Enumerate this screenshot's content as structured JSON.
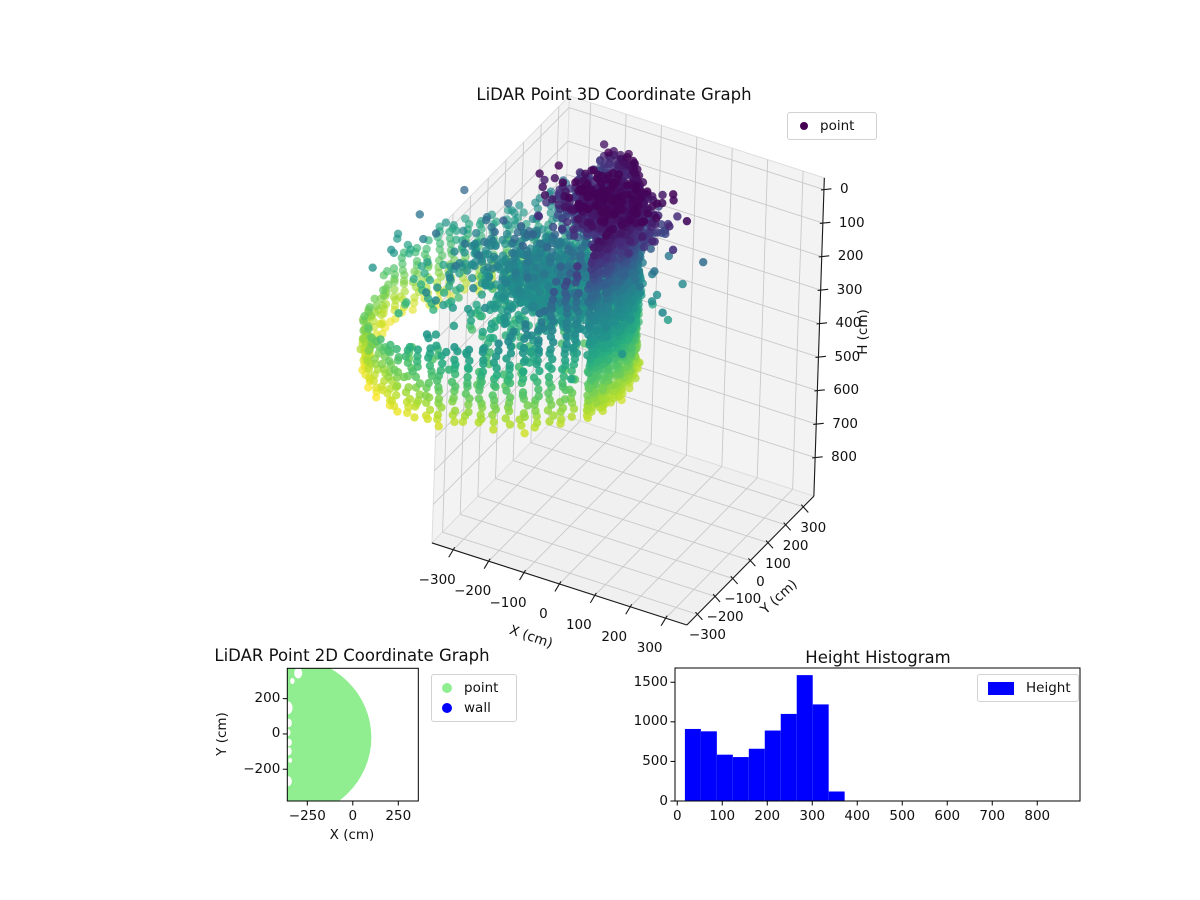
{
  "figure": {
    "background": "#ffffff"
  },
  "chart_data": [
    {
      "id": "plot3d",
      "type": "scatter3d",
      "title": "LiDAR Point 3D Coordinate Graph",
      "xlabel": "X (cm)",
      "ylabel": "Y (cm)",
      "zlabel": "H (cm)",
      "legend": {
        "position": "upper right",
        "entries": [
          {
            "label": "point",
            "color": "#440154"
          }
        ]
      },
      "view": {
        "elev_deg": 30,
        "azim_deg": -60,
        "zaxis_inverted": true
      },
      "xlim": [
        -360,
        360
      ],
      "ylim": [
        -360,
        360
      ],
      "zlim": [
        -35,
        915
      ],
      "xticks": {
        "values": [
          -300,
          -200,
          -100,
          0,
          100,
          200,
          300
        ],
        "labels": [
          "−300",
          "−200",
          "−100",
          "0",
          "100",
          "200",
          "300"
        ]
      },
      "yticks": {
        "values": [
          -300,
          -200,
          -100,
          0,
          100,
          200,
          300
        ],
        "labels": [
          "−300",
          "−200",
          "−100",
          "0",
          "100",
          "200",
          "300"
        ]
      },
      "zticks": {
        "values": [
          0,
          100,
          200,
          300,
          400,
          500,
          600,
          700,
          800
        ],
        "labels": [
          "0",
          "100",
          "200",
          "300",
          "400",
          "500",
          "600",
          "700",
          "800"
        ]
      },
      "colormap": "viridis",
      "color_by": "H (cm)",
      "color_range": [
        0,
        600
      ],
      "point_cloud": {
        "description": "LiDAR scan: ring of vertical wall point columns around scanner; dense dark wall on +X side; interior floor mass and low dark object clusters; color encodes height H",
        "scanner_center_xy": [
          -350,
          -18
        ],
        "wall": {
          "radius": 340,
          "radius_jitter": 14,
          "columns": 60,
          "dense_sector_center_deg": 20,
          "dense_sector_half_width_deg": 50,
          "dense_substeps": 3,
          "top_h_right_side": 20,
          "top_h_far_side": 460,
          "bottom_h_near": 540,
          "bottom_h_far": 600,
          "point_step_h": 15
        },
        "clusters": [
          {
            "name": "floor-mass",
            "center_xy": [
              -240,
              10
            ],
            "sigma_xy": [
              110,
              85
            ],
            "h_center": 290,
            "h_sigma": 50,
            "points": 900
          },
          {
            "name": "dark-object",
            "center_xy": [
              -115,
              85
            ],
            "sigma_xy": [
              65,
              55
            ],
            "h_center": 80,
            "h_sigma": 50,
            "points": 500
          },
          {
            "name": "dark-object-2",
            "center_xy": [
              -60,
              25
            ],
            "sigma_xy": [
              50,
              40
            ],
            "h_center": 50,
            "h_sigma": 35,
            "points": 300
          },
          {
            "name": "sparse-floor-dots",
            "region_radius": 330,
            "h_range": [
              300,
              430
            ],
            "points": 70,
            "stack_step_h": 16
          }
        ]
      }
    },
    {
      "id": "plot2d",
      "type": "scatter",
      "title": "LiDAR Point 2D Coordinate Graph",
      "xlabel": "X (cm)",
      "ylabel": "Y (cm)",
      "xlim": [
        -360,
        360
      ],
      "ylim": [
        -380,
        372
      ],
      "xticks": {
        "values": [
          -250,
          0,
          250
        ],
        "labels": [
          "−250",
          "0",
          "250"
        ]
      },
      "yticks": {
        "values": [
          200,
          0,
          -200
        ],
        "labels": [
          "200",
          "0",
          "−200"
        ]
      },
      "legend": {
        "position": "upper right outside",
        "entries": [
          {
            "label": "point",
            "color": "#90ee90"
          },
          {
            "label": "wall",
            "color": "#0000ff"
          }
        ]
      },
      "series": [
        {
          "name": "point",
          "color": "#90ee90",
          "shape": "dense filled disc of points, clipped by axes",
          "disc_center_xy": [
            -350,
            -20
          ],
          "disc_radius": 452,
          "notches": [
            {
              "xy": [
                -357,
                148
              ],
              "r": 26
            },
            {
              "xy": [
                -352,
                62
              ],
              "r": 17
            },
            {
              "xy": [
                -356,
                8
              ],
              "r": 14
            },
            {
              "xy": [
                -350,
                -48
              ],
              "r": 15
            },
            {
              "xy": [
                -352,
                -98
              ],
              "r": 16
            },
            {
              "xy": [
                -344,
                -150
              ],
              "r": 10
            },
            {
              "xy": [
                -355,
                -268
              ],
              "r": 20
            },
            {
              "xy": [
                -300,
                345
              ],
              "r": 22
            },
            {
              "xy": [
                -332,
                300
              ],
              "r": 12
            }
          ]
        },
        {
          "name": "wall",
          "color": "#0000ff",
          "visible": false
        }
      ]
    },
    {
      "id": "histogram",
      "type": "histogram",
      "title": "Height Histogram",
      "legend": {
        "position": "upper right",
        "entries": [
          {
            "label": "Height",
            "color": "#0000ff"
          }
        ]
      },
      "bar_color": "#0000ff",
      "bin_start": 17,
      "bin_width": 35.5,
      "counts": [
        910,
        880,
        585,
        555,
        660,
        890,
        1100,
        1590,
        1220,
        120
      ],
      "xlim": [
        -5,
        895
      ],
      "ylim": [
        0,
        1680
      ],
      "xticks": {
        "values": [
          0,
          100,
          200,
          300,
          400,
          500,
          600,
          700,
          800
        ],
        "labels": [
          "0",
          "100",
          "200",
          "300",
          "400",
          "500",
          "600",
          "700",
          "800"
        ]
      },
      "yticks": {
        "values": [
          0,
          500,
          1000,
          1500
        ],
        "labels": [
          "0",
          "500",
          "1000",
          "1500"
        ]
      }
    }
  ]
}
